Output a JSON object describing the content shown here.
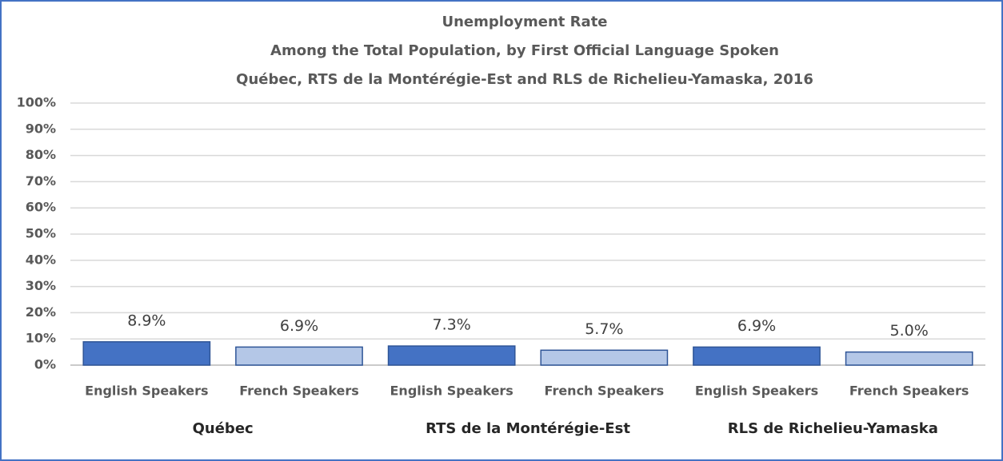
{
  "chart_data": {
    "type": "bar",
    "title": "Unemployment Rate",
    "subtitle": [
      "Among the Total Population, by First Official Language Spoken",
      "Québec, RTS de la Montérégie-Est and RLS de Richelieu-Yamaska, 2016"
    ],
    "categories": [
      "English Speakers",
      "French Speakers",
      "English Speakers",
      "French Speakers",
      "English Speakers",
      "French Speakers"
    ],
    "groups": [
      "Québec",
      "RTS de la Montérégie-Est",
      "RLS de Richelieu-Yamaska"
    ],
    "values": [
      8.9,
      6.9,
      7.3,
      5.7,
      6.9,
      5.0
    ],
    "value_labels": [
      "8.9%",
      "6.9%",
      "7.3%",
      "5.7%",
      "6.9%",
      "5.0%"
    ],
    "colors": [
      "#4472c4",
      "#b4c7e7",
      "#4472c4",
      "#b4c7e7",
      "#4472c4",
      "#b4c7e7"
    ],
    "ylim": [
      0,
      100
    ],
    "yticks": [
      {
        "value": 0,
        "label": "0%"
      },
      {
        "value": 10,
        "label": "10%"
      },
      {
        "value": 20,
        "label": "20%"
      },
      {
        "value": 30,
        "label": "30%"
      },
      {
        "value": 40,
        "label": "40%"
      },
      {
        "value": 50,
        "label": "50%"
      },
      {
        "value": 60,
        "label": "60%"
      },
      {
        "value": 70,
        "label": "70%"
      },
      {
        "value": 80,
        "label": "80%"
      },
      {
        "value": 90,
        "label": "90%"
      },
      {
        "value": 100,
        "label": "100%"
      }
    ],
    "grid": true
  }
}
